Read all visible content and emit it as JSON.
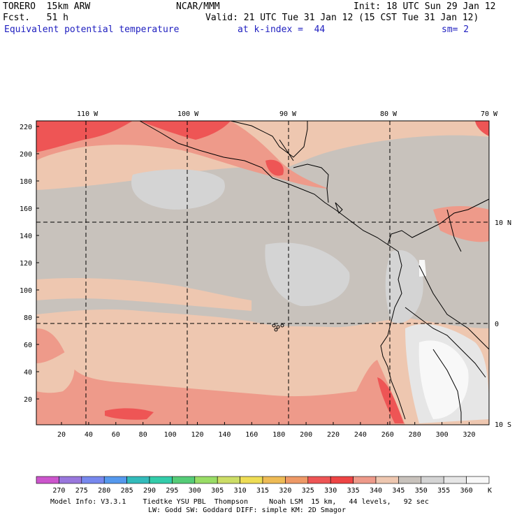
{
  "header": {
    "model_line": "TORERO  15km ARW",
    "org": "NCAR/MMM",
    "init": "Init: 18 UTC Sun 29 Jan 12",
    "fcst": "Fcst.   51 h",
    "valid": "Valid: 21 UTC Tue 31 Jan 12 (15 CST Tue 31 Jan 12)",
    "field": "Equivalent potential temperature",
    "level": "at k-index =  44",
    "smooth": "sm= 2"
  },
  "map": {
    "lon_labels": [
      "110 W",
      "100 W",
      "90 W",
      "80 W",
      "70 W"
    ],
    "lat_labels": [
      "10 N",
      "0",
      "10 S"
    ],
    "y_grid_labels": [
      "220",
      "200",
      "180",
      "160",
      "140",
      "120",
      "100",
      "80",
      "60",
      "40",
      "20"
    ],
    "x_grid_labels": [
      "20",
      "40",
      "60",
      "80",
      "100",
      "120",
      "140",
      "160",
      "180",
      "200",
      "220",
      "240",
      "260",
      "280",
      "300",
      "320"
    ]
  },
  "colorbar": {
    "labels": [
      "270",
      "275",
      "280",
      "285",
      "290",
      "295",
      "300",
      "305",
      "310",
      "315",
      "320",
      "325",
      "330",
      "335",
      "340",
      "345",
      "350",
      "355",
      "360"
    ],
    "unit": "K",
    "colors": [
      "#cc55cc",
      "#9977dd",
      "#7788ee",
      "#5599ee",
      "#33bbbb",
      "#33ccaa",
      "#55cc77",
      "#99dd66",
      "#ccdd66",
      "#eedd55",
      "#eebb55",
      "#ee9966",
      "#ee5555",
      "#ee4444",
      "#ee9a8a",
      "#eec7b0",
      "#c8c2bc",
      "#d4d4d4",
      "#e6e6e6",
      "#f8f8f8"
    ]
  },
  "footer": {
    "line1": "Model Info: V3.3.1    Tiedtke YSU PBL  Thompson     Noah LSM  15 km,   44 levels,   92 sec",
    "line2": "LW: Godd SW: Goddard DIFF: simple KM: 2D Smagor"
  }
}
